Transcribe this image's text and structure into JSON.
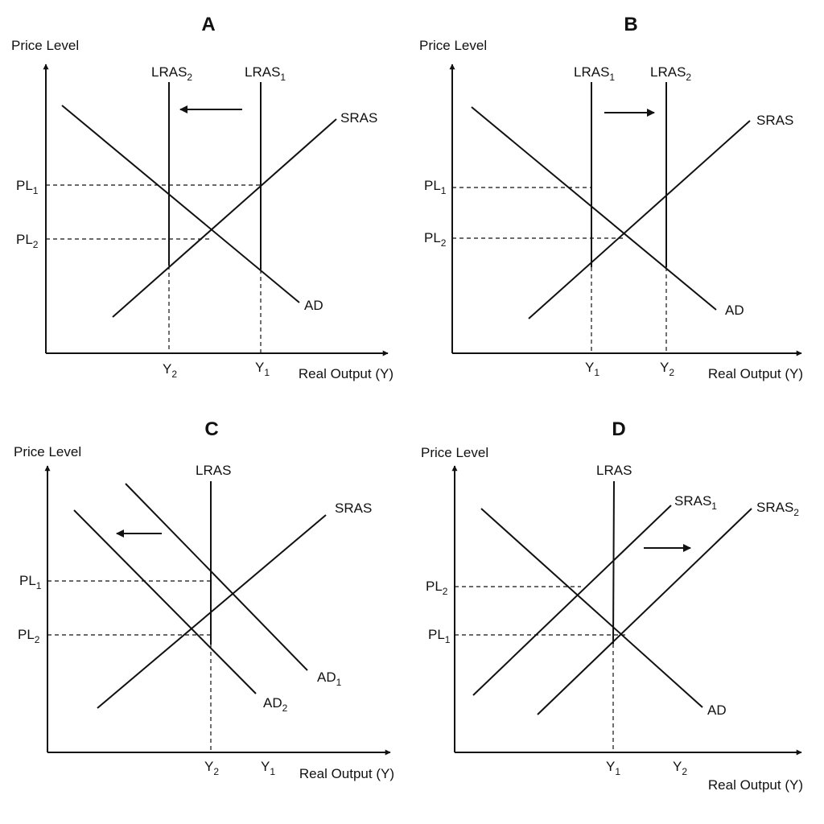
{
  "panels": [
    {
      "title": "A",
      "y_axis_label": "Price Level",
      "x_axis_label": "Real Output (Y)",
      "price_levels": [
        {
          "base": "PL",
          "sub": "1"
        },
        {
          "base": "PL",
          "sub": "2"
        }
      ],
      "outputs": [
        {
          "base": "Y",
          "sub": "2"
        },
        {
          "base": "Y",
          "sub": "1"
        }
      ],
      "curves": [
        {
          "base": "LRAS",
          "sub": "2"
        },
        {
          "base": "LRAS",
          "sub": "1"
        },
        {
          "base": "SRAS",
          "sub": ""
        },
        {
          "base": "AD",
          "sub": ""
        }
      ],
      "shift_direction": "left"
    },
    {
      "title": "B",
      "y_axis_label": "Price Level",
      "x_axis_label": "Real Output (Y)",
      "price_levels": [
        {
          "base": "PL",
          "sub": "1"
        },
        {
          "base": "PL",
          "sub": "2"
        }
      ],
      "outputs": [
        {
          "base": "Y",
          "sub": "1"
        },
        {
          "base": "Y",
          "sub": "2"
        }
      ],
      "curves": [
        {
          "base": "LRAS",
          "sub": "1"
        },
        {
          "base": "LRAS",
          "sub": "2"
        },
        {
          "base": "SRAS",
          "sub": ""
        },
        {
          "base": "AD",
          "sub": ""
        }
      ],
      "shift_direction": "right"
    },
    {
      "title": "C",
      "y_axis_label": "Price Level",
      "x_axis_label": "Real Output (Y)",
      "price_levels": [
        {
          "base": "PL",
          "sub": "1"
        },
        {
          "base": "PL",
          "sub": "2"
        }
      ],
      "outputs": [
        {
          "base": "Y",
          "sub": "2"
        },
        {
          "base": "Y",
          "sub": "1"
        }
      ],
      "curves": [
        {
          "base": "LRAS",
          "sub": ""
        },
        {
          "base": "SRAS",
          "sub": ""
        },
        {
          "base": "AD",
          "sub": "1"
        },
        {
          "base": "AD",
          "sub": "2"
        }
      ],
      "shift_direction": "left"
    },
    {
      "title": "D",
      "y_axis_label": "Price Level",
      "x_axis_label": "Real Output (Y)",
      "price_levels": [
        {
          "base": "PL",
          "sub": "2"
        },
        {
          "base": "PL",
          "sub": "1"
        }
      ],
      "outputs": [
        {
          "base": "Y",
          "sub": "1"
        },
        {
          "base": "Y",
          "sub": "2"
        }
      ],
      "curves": [
        {
          "base": "LRAS",
          "sub": ""
        },
        {
          "base": "SRAS",
          "sub": "1"
        },
        {
          "base": "SRAS",
          "sub": "2"
        },
        {
          "base": "AD",
          "sub": ""
        }
      ],
      "shift_direction": "right"
    }
  ]
}
